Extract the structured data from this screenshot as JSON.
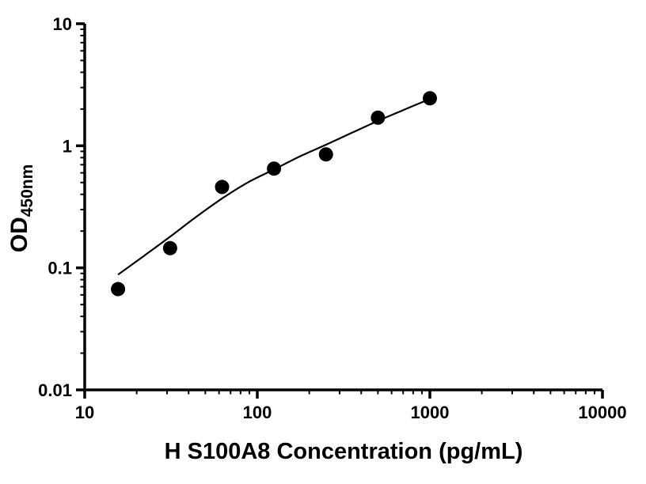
{
  "figure": {
    "background_color": "#ffffff",
    "foreground_color": "#000000"
  },
  "chart_data": {
    "type": "scatter",
    "title": "",
    "xlabel": "H S100A8 Concentration (pg/mL)",
    "ylabel": "OD",
    "ylabel_subscript": "450nm",
    "x_scale": "log",
    "y_scale": "log",
    "xlim": [
      10,
      10000
    ],
    "ylim": [
      0.01,
      10
    ],
    "x_ticks": [
      10,
      100,
      1000,
      10000
    ],
    "y_ticks": [
      0.01,
      0.1,
      1,
      10
    ],
    "grid": false,
    "legend": false,
    "series": [
      {
        "name": "standard-curve-points",
        "x": [
          15.6,
          31.25,
          62.5,
          125,
          250,
          500,
          1000
        ],
        "y": [
          0.067,
          0.145,
          0.46,
          0.65,
          0.85,
          1.7,
          2.45
        ],
        "marker": "circle",
        "marker_color": "#000000",
        "marker_radius": 9
      }
    ],
    "fit_curve": {
      "name": "fitted-curve",
      "color": "#000000",
      "points": [
        [
          15.6,
          0.088
        ],
        [
          22,
          0.125
        ],
        [
          31.25,
          0.18
        ],
        [
          44,
          0.26
        ],
        [
          62.5,
          0.37
        ],
        [
          88,
          0.5
        ],
        [
          125,
          0.64
        ],
        [
          177,
          0.82
        ],
        [
          250,
          1.02
        ],
        [
          354,
          1.28
        ],
        [
          500,
          1.6
        ],
        [
          707,
          1.97
        ],
        [
          1000,
          2.42
        ]
      ]
    }
  }
}
